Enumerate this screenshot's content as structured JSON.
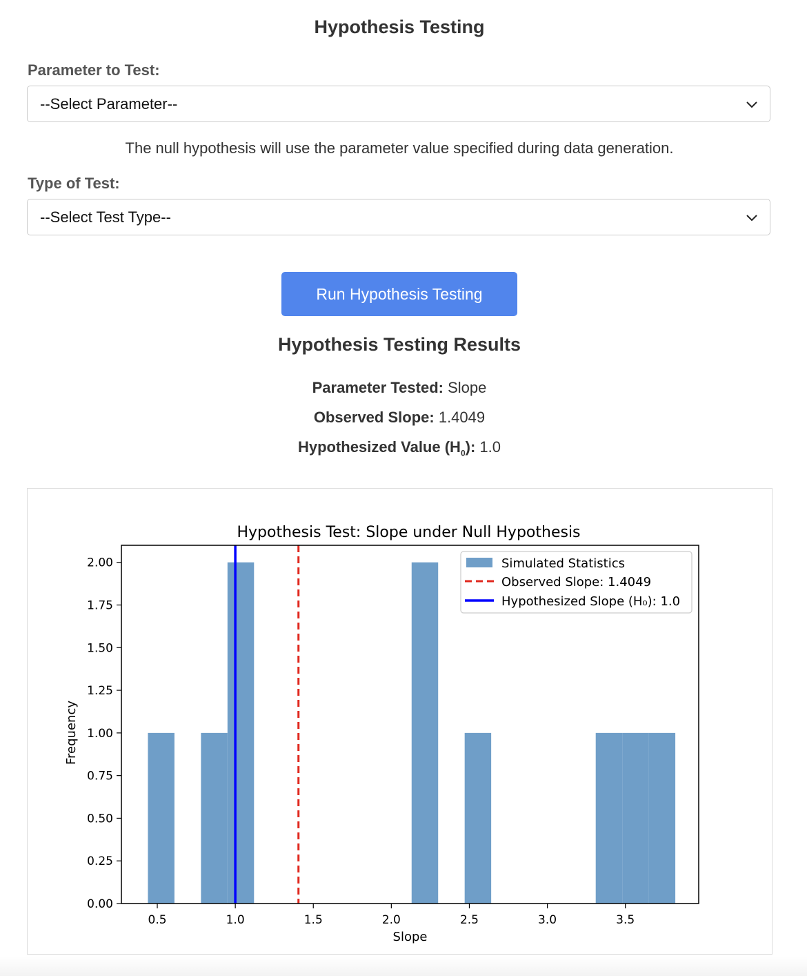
{
  "page": {
    "title": "Hypothesis Testing"
  },
  "form": {
    "parameter_label": "Parameter to Test:",
    "parameter_select": "--Select Parameter--",
    "note": "The null hypothesis will use the parameter value specified during data generation.",
    "test_type_label": "Type of Test:",
    "test_type_select": "--Select Test Type--",
    "run_button": "Run Hypothesis Testing"
  },
  "results": {
    "title": "Hypothesis Testing Results",
    "parameter_tested_label": "Parameter Tested:",
    "parameter_tested_value": "Slope",
    "observed_label": "Observed Slope:",
    "observed_value": "1.4049",
    "hypothesized_label_prefix": "Hypothesized Value (H",
    "hypothesized_label_sub": "0",
    "hypothesized_label_suffix": "):",
    "hypothesized_value": "1.0"
  },
  "colors": {
    "button": "#5185ec",
    "bars": "#6f9ec8",
    "observed_line": "#e0281e",
    "hypothesized_line": "#0000ff"
  },
  "chart_data": {
    "type": "bar",
    "title": "Hypothesis Test: Slope under Null Hypothesis",
    "xlabel": "Slope",
    "ylabel": "Frequency",
    "xlim": [
      0.27,
      3.97
    ],
    "ylim": [
      0,
      2.1
    ],
    "xticks": [
      "0.5",
      "1.0",
      "1.5",
      "2.0",
      "2.5",
      "3.0",
      "3.5"
    ],
    "yticks": [
      "0.00",
      "0.25",
      "0.50",
      "0.75",
      "1.00",
      "1.25",
      "1.50",
      "1.75",
      "2.00"
    ],
    "bins": [
      {
        "x0": 0.44,
        "x1": 0.61,
        "count": 1
      },
      {
        "x0": 0.78,
        "x1": 0.95,
        "count": 1
      },
      {
        "x0": 0.95,
        "x1": 1.12,
        "count": 2
      },
      {
        "x0": 2.13,
        "x1": 2.3,
        "count": 2
      },
      {
        "x0": 2.47,
        "x1": 2.64,
        "count": 1
      },
      {
        "x0": 3.31,
        "x1": 3.48,
        "count": 1
      },
      {
        "x0": 3.48,
        "x1": 3.65,
        "count": 1
      },
      {
        "x0": 3.65,
        "x1": 3.82,
        "count": 1
      }
    ],
    "observed": 1.4049,
    "hypothesized": 1.0,
    "legend": {
      "position": "top-right",
      "entries": [
        "Simulated Statistics",
        "Observed Slope: 1.4049",
        "Hypothesized Slope (H₀): 1.0"
      ]
    }
  }
}
